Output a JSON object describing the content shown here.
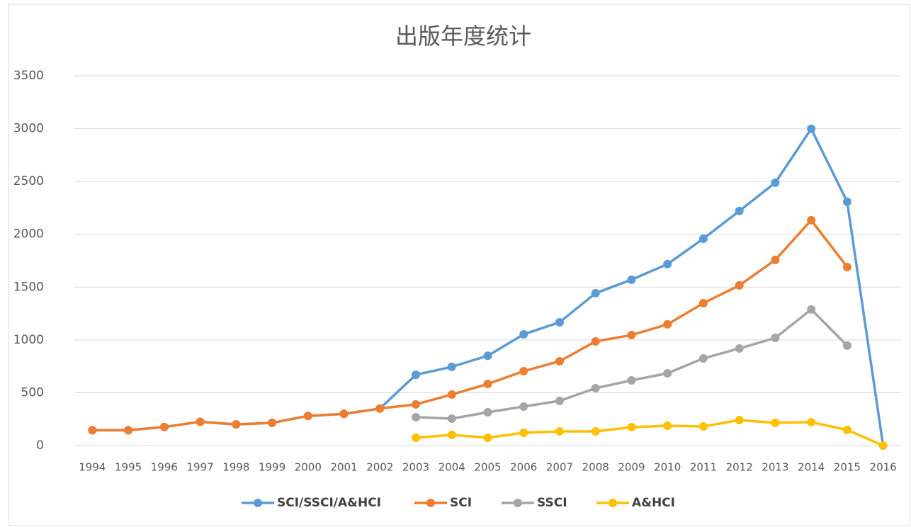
{
  "chart_data": {
    "type": "line",
    "title": "出版年度统计",
    "categories": [
      "1994",
      "1995",
      "1996",
      "1997",
      "1998",
      "1999",
      "2000",
      "2001",
      "2002",
      "2003",
      "2004",
      "2005",
      "2006",
      "2007",
      "2008",
      "2009",
      "2010",
      "2011",
      "2012",
      "2013",
      "2014",
      "2015",
      "2016"
    ],
    "series": [
      {
        "name": "SCI/SSCI/A&HCI",
        "color": "#5b9bd5",
        "values": [
          145,
          145,
          175,
          225,
          200,
          215,
          280,
          300,
          350,
          670,
          745,
          850,
          1053,
          1167,
          1442,
          1570,
          1717,
          1958,
          2220,
          2488,
          2998,
          2307,
          0
        ]
      },
      {
        "name": "SCI",
        "color": "#ed7d31",
        "values": [
          145,
          145,
          175,
          225,
          200,
          215,
          280,
          300,
          350,
          390,
          483,
          583,
          704,
          798,
          986,
          1046,
          1147,
          1348,
          1516,
          1757,
          2133,
          1690,
          null
        ]
      },
      {
        "name": "SSCI",
        "color": "#a5a5a5",
        "values": [
          null,
          null,
          null,
          null,
          null,
          null,
          null,
          null,
          null,
          268,
          255,
          315,
          369,
          423,
          543,
          617,
          684,
          825,
          919,
          1019,
          1288,
          946,
          null
        ]
      },
      {
        "name": "A&HCI",
        "color": "#ffc000",
        "values": [
          null,
          null,
          null,
          null,
          null,
          null,
          null,
          null,
          null,
          74,
          101,
          74,
          121,
          134,
          134,
          174,
          188,
          181,
          241,
          215,
          221,
          148,
          0
        ]
      }
    ],
    "ylim": [
      0,
      3500
    ],
    "yticks": [
      0,
      500,
      1000,
      1500,
      2000,
      2500,
      3000,
      3500
    ],
    "grid": true,
    "legend": "bottom"
  }
}
